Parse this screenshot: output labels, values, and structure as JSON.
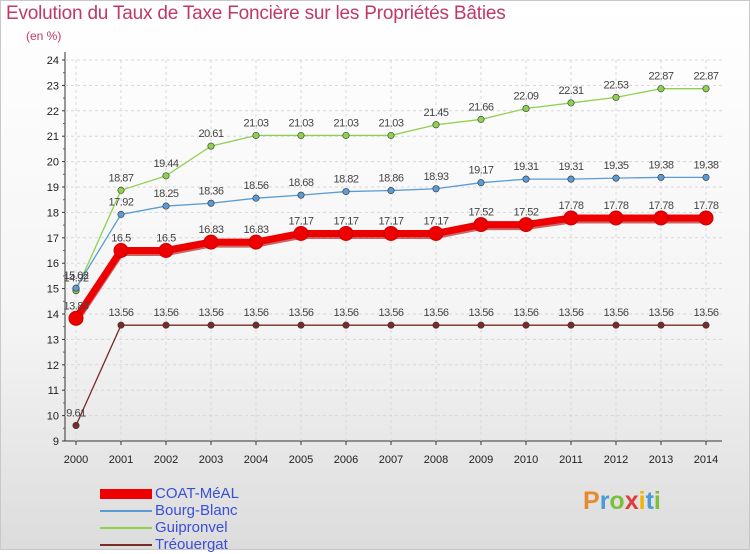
{
  "header": {
    "title": "Evolution du Taux de Taxe Foncière sur les Propriétés Bâties",
    "subtitle": "(en %)"
  },
  "logo": {
    "letters": [
      "P",
      "r",
      "o",
      "x",
      "i",
      "t",
      "i"
    ],
    "colors": [
      "#e8892a",
      "#4a9ad8",
      "#7bbf3a",
      "#e03c3c",
      "#f0b400",
      "#4a9ad8",
      "#7bbf3a"
    ]
  },
  "chart_data": {
    "type": "line",
    "title": "Evolution du Taux de Taxe Foncière sur les Propriétés Bâties",
    "ylabel": "(en %)",
    "x": [
      "2000",
      "2001",
      "2002",
      "2003",
      "2004",
      "2005",
      "2006",
      "2007",
      "2008",
      "2009",
      "2010",
      "2011",
      "2012",
      "2013",
      "2014"
    ],
    "ylim": [
      9,
      24
    ],
    "yticks": [
      9,
      10,
      11,
      12,
      13,
      14,
      15,
      16,
      17,
      18,
      19,
      20,
      21,
      22,
      23,
      24
    ],
    "grid": true,
    "legend_position": "bottom-left",
    "series": [
      {
        "name": "COAT-MéAL",
        "color": "#ee0000",
        "values": [
          13.83,
          16.5,
          16.5,
          16.83,
          16.83,
          17.17,
          17.17,
          17.17,
          17.17,
          17.52,
          17.52,
          17.78,
          17.78,
          17.78,
          17.78
        ],
        "labels": [
          "13.83",
          "16.5",
          "16.5",
          "16.83",
          "16.83",
          "17.17",
          "17.17",
          "17.17",
          "17.17",
          "17.52",
          "17.52",
          "17.78",
          "17.78",
          "17.78",
          "17.78"
        ]
      },
      {
        "name": "Bourg-Blanc",
        "color": "#5b9bd5",
        "values": [
          15.02,
          17.92,
          18.25,
          18.36,
          18.56,
          18.68,
          18.82,
          18.86,
          18.93,
          19.17,
          19.31,
          19.31,
          19.35,
          19.38,
          19.38
        ],
        "labels": [
          "15.02",
          "17.92",
          "18.25",
          "18.36",
          "18.56",
          "18.68",
          "18.82",
          "18.86",
          "18.93",
          "19.17",
          "19.31",
          "19.31",
          "19.35",
          "19.38",
          "19.38"
        ]
      },
      {
        "name": "Guipronvel",
        "color": "#8fd14f",
        "values": [
          14.92,
          18.87,
          19.44,
          20.61,
          21.03,
          21.03,
          21.03,
          21.03,
          21.45,
          21.66,
          22.09,
          22.31,
          22.53,
          22.87,
          22.87
        ],
        "labels": [
          "14.92",
          "18.87",
          "19.44",
          "20.61",
          "21.03",
          "21.03",
          "21.03",
          "21.03",
          "21.45",
          "21.66",
          "22.09",
          "22.31",
          "22.53",
          "22.87",
          "22.87"
        ]
      },
      {
        "name": "Tréouergat",
        "color": "#7a2a2a",
        "values": [
          9.61,
          13.56,
          13.56,
          13.56,
          13.56,
          13.56,
          13.56,
          13.56,
          13.56,
          13.56,
          13.56,
          13.56,
          13.56,
          13.56,
          13.56
        ],
        "labels": [
          "9.61",
          "13.56",
          "13.56",
          "13.56",
          "13.56",
          "13.56",
          "13.56",
          "13.56",
          "13.56",
          "13.56",
          "13.56",
          "13.56",
          "13.56",
          "13.56",
          "13.56"
        ]
      }
    ]
  }
}
